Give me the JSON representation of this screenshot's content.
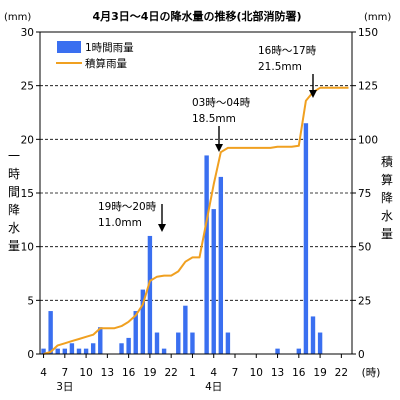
{
  "chart_data": {
    "type": "bar+line",
    "title": "4月3日～4日の降水量の推移(北部消防署)",
    "left_axis": {
      "unit": "(mm)",
      "label": [
        "一",
        "時",
        "間",
        "降",
        "水",
        "量"
      ],
      "ylim": [
        0,
        30
      ],
      "ticks": [
        0,
        5,
        10,
        15,
        20,
        25,
        30
      ]
    },
    "right_axis": {
      "unit": "(mm)",
      "label": [
        "積",
        "算",
        "降",
        "水",
        "量"
      ],
      "ylim": [
        0,
        150
      ],
      "ticks": [
        0,
        25,
        50,
        75,
        100,
        125,
        150
      ]
    },
    "x_axis": {
      "unit": "(時)",
      "hour_range": [
        4,
        23
      ],
      "ticks": [
        {
          "label": "4",
          "index": 0
        },
        {
          "label": "7",
          "index": 3
        },
        {
          "label": "10",
          "index": 6
        },
        {
          "label": "13",
          "index": 9
        },
        {
          "label": "16",
          "index": 12
        },
        {
          "label": "19",
          "index": 15
        },
        {
          "label": "22",
          "index": 18
        },
        {
          "label": "1",
          "index": 21
        },
        {
          "label": "4",
          "index": 24
        },
        {
          "label": "7",
          "index": 27
        },
        {
          "label": "10",
          "index": 30
        },
        {
          "label": "13",
          "index": 33
        },
        {
          "label": "16",
          "index": 36
        },
        {
          "label": "19",
          "index": 39
        },
        {
          "label": "22",
          "index": 42
        }
      ],
      "day_labels": [
        {
          "label": "3日",
          "index": 3
        },
        {
          "label": "4日",
          "index": 24
        }
      ]
    },
    "dashed_grid": [
      25,
      20,
      15,
      10,
      5
    ],
    "legend": {
      "position": "top-left",
      "entries": [
        {
          "name": "1時間雨量",
          "type": "bar",
          "color": "#3a6ff0"
        },
        {
          "name": "積算雨量",
          "type": "line",
          "color": "#f0a020"
        }
      ]
    },
    "series": [
      {
        "name": "1時間雨量",
        "axis": "left",
        "color": "#3a6ff0",
        "values": [
          0.5,
          4,
          0.5,
          0.5,
          1,
          0.5,
          0.5,
          1,
          2.5,
          0,
          0,
          1,
          1.5,
          4,
          6,
          11,
          2,
          0.5,
          0,
          2,
          4.5,
          2,
          0,
          18.5,
          13.5,
          16.5,
          2,
          0,
          0,
          0,
          0,
          0,
          0,
          0.5,
          0,
          0,
          0.5,
          21.5,
          3.5,
          2,
          0,
          0,
          0,
          0
        ]
      },
      {
        "name": "積算雨量",
        "axis": "right",
        "color": "#f0a020",
        "values": [
          0,
          1,
          4,
          5,
          6,
          7,
          8,
          9,
          12,
          12,
          12,
          13,
          15,
          18,
          23,
          34,
          36,
          36.5,
          36.5,
          38.5,
          43,
          45,
          45,
          62,
          79,
          94,
          96,
          96,
          96,
          96,
          96,
          96,
          96,
          96.5,
          96.5,
          96.5,
          97,
          118,
          122,
          124,
          124,
          124,
          124,
          124
        ]
      }
    ],
    "annotations": [
      {
        "lines": [
          "19時～20時",
          "11.0mm"
        ],
        "index": 15,
        "value": 11.0
      },
      {
        "lines": [
          "03時～04時",
          "18.5mm"
        ],
        "index": 23,
        "value": 18.5
      },
      {
        "lines": [
          "16時～17時",
          "21.5mm"
        ],
        "index": 37,
        "value": 21.5
      }
    ]
  }
}
